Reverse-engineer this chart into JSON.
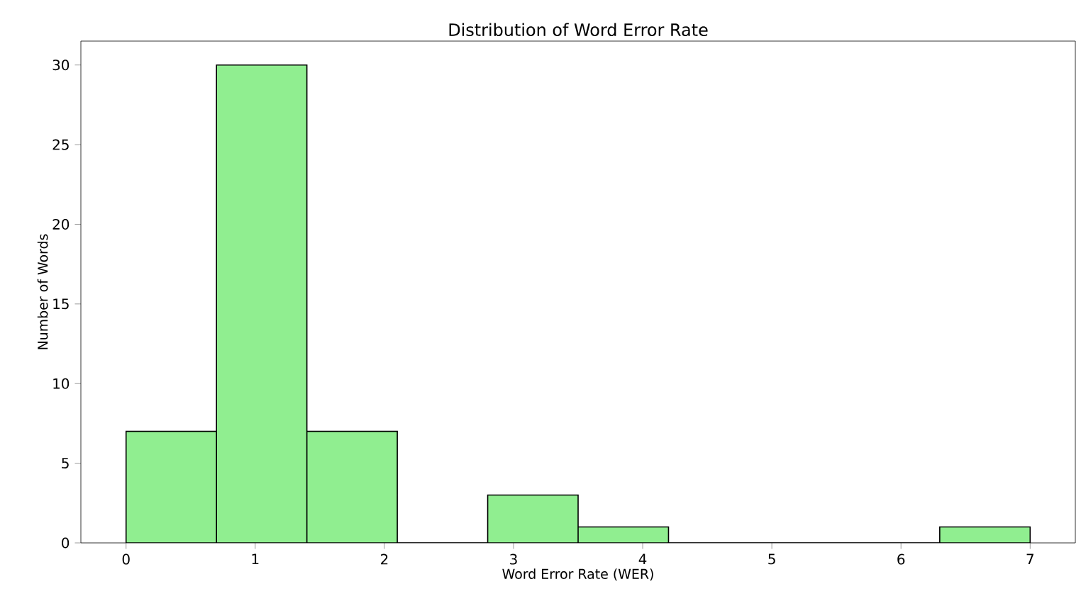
{
  "chart_data": {
    "type": "histogram",
    "title": "Distribution of Word Error Rate",
    "xlabel": "Word Error Rate (WER)",
    "ylabel": "Number of Words",
    "bins": [
      0,
      0.7,
      1.4,
      2.1,
      2.8,
      3.5,
      4.2,
      4.9,
      5.6,
      6.3,
      7.0
    ],
    "values": [
      7,
      30,
      7,
      0,
      3,
      1,
      0,
      0,
      0,
      1
    ],
    "color": "#90ee90",
    "xlim": [
      -0.35,
      7.35
    ],
    "ylim": [
      0,
      31.5
    ],
    "xticks": [
      0,
      1,
      2,
      3,
      4,
      5,
      6,
      7
    ],
    "yticks": [
      0,
      5,
      10,
      15,
      20,
      25,
      30
    ]
  }
}
